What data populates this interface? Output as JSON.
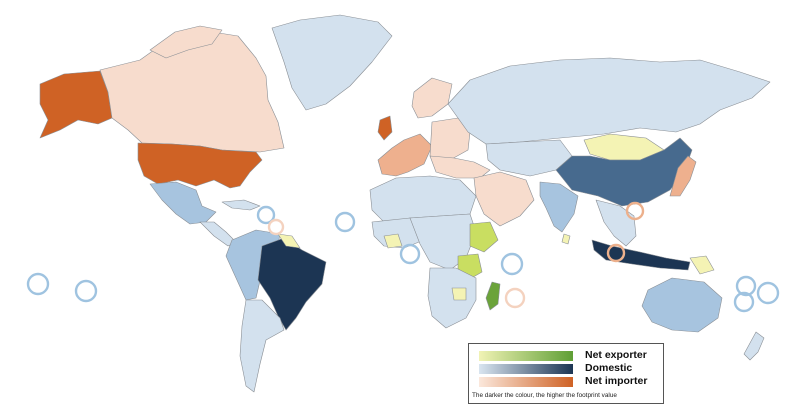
{
  "colors": {
    "domestic_light": "#d3e1ee",
    "domestic_mid": "#a7c4df",
    "domestic_dark": "#476a8e",
    "domestic_darkest": "#1c3553",
    "importer_light": "#f7dccd",
    "importer_mid": "#eeb08e",
    "importer_dark": "#cf6225",
    "exporter_light": "#f4f3b4",
    "exporter_mid": "#c9de61",
    "exporter_dark": "#6ba33a",
    "border": "#8a8f95",
    "circle_domestic": "#9fc3e0",
    "circle_importer": "#ecb08c",
    "circle_importer_light": "#f4d2bf"
  },
  "legend": {
    "items": [
      {
        "label": "Net exporter",
        "from": "#f1f3b5",
        "to": "#5f9f35"
      },
      {
        "label": "Domestic",
        "from": "#d9e5f0",
        "to": "#1c3553"
      },
      {
        "label": "Net importer",
        "from": "#fbe8dc",
        "to": "#cf6225"
      }
    ],
    "note": "The darker the colour, the higher the footprint value"
  }
}
